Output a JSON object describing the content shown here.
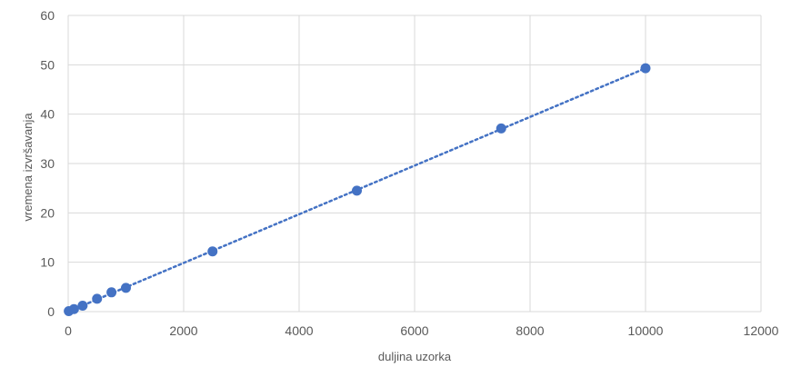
{
  "chart_data": {
    "type": "scatter",
    "title": "",
    "xlabel": "duljina uzorka",
    "ylabel": "vremena izvršavanja",
    "xlim": [
      0,
      12000
    ],
    "ylim": [
      0,
      60
    ],
    "xticks": [
      0,
      2000,
      4000,
      6000,
      8000,
      10000,
      12000
    ],
    "yticks": [
      0,
      10,
      20,
      30,
      40,
      50,
      60
    ],
    "grid": true,
    "legend": "none",
    "trendline": {
      "type": "linear",
      "style": "dotted",
      "from": [
        0,
        0
      ],
      "to": [
        10000,
        49.3
      ]
    },
    "marker_color": "#4472C4",
    "series": [
      {
        "x": [
          10,
          100,
          250,
          500,
          750,
          1000,
          2500,
          5000,
          7500,
          10000
        ],
        "y": [
          0.1,
          0.5,
          1.2,
          2.6,
          3.9,
          4.8,
          12.2,
          24.5,
          37.1,
          49.3
        ]
      }
    ]
  }
}
